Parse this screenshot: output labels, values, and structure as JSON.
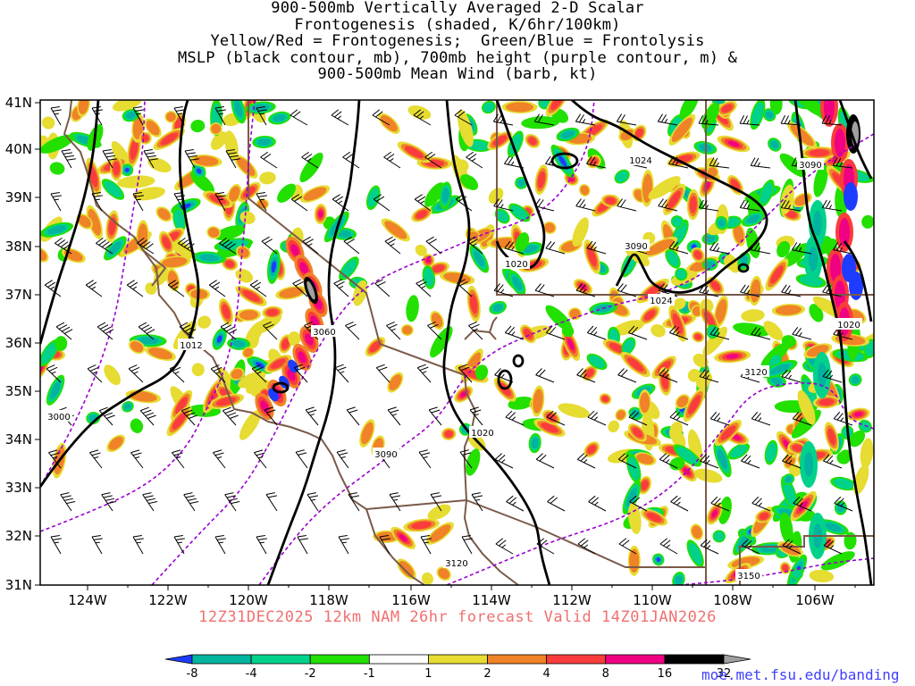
{
  "title_lines": [
    "900-500mb Vertically Averaged 2-D Scalar",
    "Frontogenesis (shaded, K/6hr/100km)",
    "Yellow/Red = Frontogenesis;  Green/Blue = Frontolysis",
    "MSLP (black contour, mb), 700mb height (purple contour, m) &",
    "900-500mb Mean Wind (barb, kt)"
  ],
  "subtitle": "12Z31DEC2025 12km NAM 26hr forecast Valid 14Z01JAN2026",
  "credit": "moe.met.fsu.edu/banding",
  "map": {
    "lon_labels": [
      "124W",
      "122W",
      "120W",
      "118W",
      "116W",
      "114W",
      "112W",
      "110W",
      "108W",
      "106W"
    ],
    "lat_labels": [
      "41N",
      "40N",
      "39N",
      "38N",
      "37N",
      "36N",
      "35N",
      "34N",
      "33N",
      "32N",
      "31N"
    ],
    "contour_labels": [
      {
        "text": "1012",
        "kind": "mslp"
      },
      {
        "text": "1020",
        "kind": "mslp"
      },
      {
        "text": "1020",
        "kind": "mslp"
      },
      {
        "text": "1024",
        "kind": "mslp"
      },
      {
        "text": "1024",
        "kind": "mslp"
      },
      {
        "text": "1020",
        "kind": "mslp"
      },
      {
        "text": "3000",
        "kind": "hgt"
      },
      {
        "text": "3060",
        "kind": "hgt"
      },
      {
        "text": "3090",
        "kind": "hgt"
      },
      {
        "text": "3090",
        "kind": "hgt"
      },
      {
        "text": "3090",
        "kind": "hgt"
      },
      {
        "text": "3120",
        "kind": "hgt"
      },
      {
        "text": "3120",
        "kind": "hgt"
      },
      {
        "text": "3150",
        "kind": "hgt"
      }
    ]
  },
  "colorbar": {
    "labels": [
      "-8",
      "-4",
      "-2",
      "-1",
      "1",
      "2",
      "4",
      "8",
      "16",
      "32"
    ],
    "colors": [
      "#1e3cff",
      "#00b4a0",
      "#00d28c",
      "#22e000",
      "#ffffff",
      "#e6dc32",
      "#f08228",
      "#fa3c3c",
      "#f00082",
      "#000000",
      "#a0a0a0"
    ]
  },
  "colors": {
    "mslp": "#000000",
    "height": "#9a00d0",
    "border": "#7a5a48",
    "subtitle": "#f07070",
    "credit": "#4040ff"
  }
}
